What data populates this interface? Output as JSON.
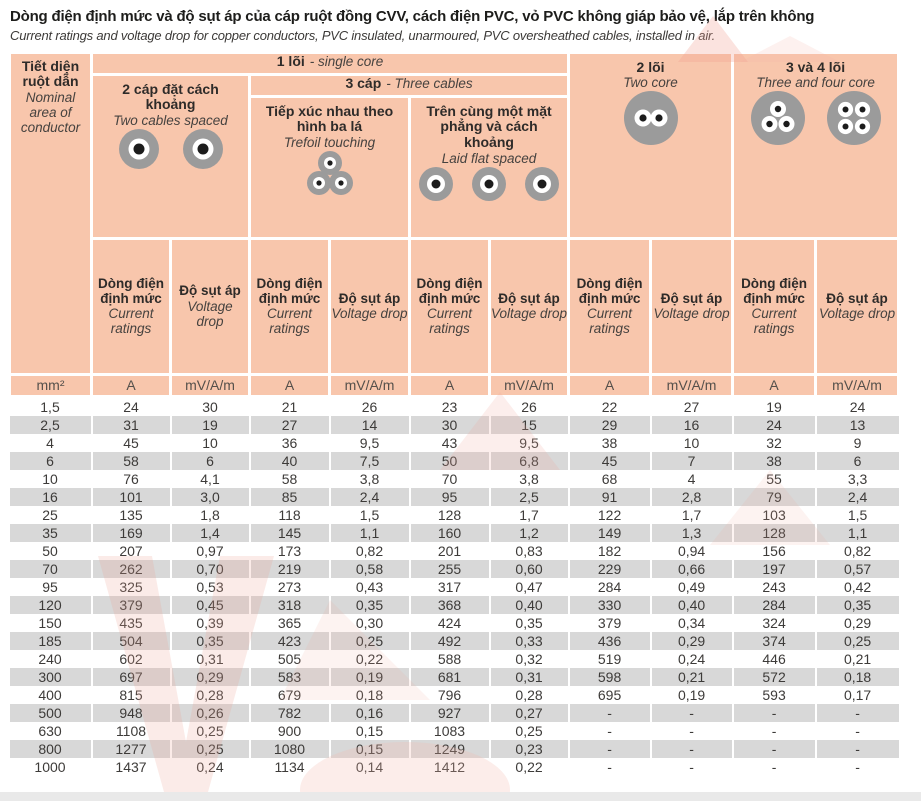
{
  "page": {
    "title": "Dòng điện định mức và độ sụt áp của cáp ruột đồng CVV, cách điện PVC, vỏ PVC không giáp bảo vệ, lắp trên không",
    "subtitle": "Current ratings and voltage drop for copper conductors, PVC insulated, unarmoured, PVC oversheathed cables, installed in air."
  },
  "colors": {
    "header_bg": "#f8c6ac",
    "stripe_gray": "#d8d8d8",
    "cable_gray": "#9b9b9b",
    "watermark_pink": "#f0a79c"
  },
  "table": {
    "corner": {
      "vn": "Tiết diện ruột dẫn",
      "en": "Nominal area of conductor"
    },
    "groups": {
      "single_core": {
        "vn": "1 lõi",
        "sep": " - ",
        "en": "single core"
      },
      "two_cables_spaced": {
        "vn": "2 cáp đặt cách khoảng",
        "en": "Two cables spaced"
      },
      "three_cables": {
        "vn": "3 cáp",
        "sep": " - ",
        "en": "Three cables"
      },
      "trefoil": {
        "vn": "Tiếp xúc nhau theo hình ba lá",
        "en": "Trefoil touching"
      },
      "laid_flat": {
        "vn": "Trên cùng một mặt phẳng và cách khoảng",
        "en": "Laid flat spaced"
      },
      "two_core": {
        "vn": "2 lõi",
        "en": "Two core"
      },
      "three_four_core": {
        "vn": "3 và 4 lõi",
        "en": "Three and four core"
      }
    },
    "measure_headers": {
      "current": {
        "vn": "Dòng điện định mức",
        "en": "Current ratings"
      },
      "voltage": {
        "vn": "Độ sụt áp",
        "en": "Voltage drop"
      }
    },
    "units": [
      "mm²",
      "A",
      "mV/A/m",
      "A",
      "mV/A/m",
      "A",
      "mV/A/m",
      "A",
      "mV/A/m",
      "A",
      "mV/A/m"
    ],
    "rows": [
      [
        "1,5",
        "24",
        "30",
        "21",
        "26",
        "23",
        "26",
        "22",
        "27",
        "19",
        "24"
      ],
      [
        "2,5",
        "31",
        "19",
        "27",
        "14",
        "30",
        "15",
        "29",
        "16",
        "24",
        "13"
      ],
      [
        "4",
        "45",
        "10",
        "36",
        "9,5",
        "43",
        "9,5",
        "38",
        "10",
        "32",
        "9"
      ],
      [
        "6",
        "58",
        "6",
        "40",
        "7,5",
        "50",
        "6,8",
        "45",
        "7",
        "38",
        "6"
      ],
      [
        "10",
        "76",
        "4,1",
        "58",
        "3,8",
        "70",
        "3,8",
        "68",
        "4",
        "55",
        "3,3"
      ],
      [
        "16",
        "101",
        "3,0",
        "85",
        "2,4",
        "95",
        "2,5",
        "91",
        "2,8",
        "79",
        "2,4"
      ],
      [
        "25",
        "135",
        "1,8",
        "118",
        "1,5",
        "128",
        "1,7",
        "122",
        "1,7",
        "103",
        "1,5"
      ],
      [
        "35",
        "169",
        "1,4",
        "145",
        "1,1",
        "160",
        "1,2",
        "149",
        "1,3",
        "128",
        "1,1"
      ],
      [
        "50",
        "207",
        "0,97",
        "173",
        "0,82",
        "201",
        "0,83",
        "182",
        "0,94",
        "156",
        "0,82"
      ],
      [
        "70",
        "262",
        "0,70",
        "219",
        "0,58",
        "255",
        "0,60",
        "229",
        "0,66",
        "197",
        "0,57"
      ],
      [
        "95",
        "325",
        "0,53",
        "273",
        "0,43",
        "317",
        "0,47",
        "284",
        "0,49",
        "243",
        "0,42"
      ],
      [
        "120",
        "379",
        "0,45",
        "318",
        "0,35",
        "368",
        "0,40",
        "330",
        "0,40",
        "284",
        "0,35"
      ],
      [
        "150",
        "435",
        "0,39",
        "365",
        "0,30",
        "424",
        "0,35",
        "379",
        "0,34",
        "324",
        "0,29"
      ],
      [
        "185",
        "504",
        "0,35",
        "423",
        "0,25",
        "492",
        "0,33",
        "436",
        "0,29",
        "374",
        "0,25"
      ],
      [
        "240",
        "602",
        "0,31",
        "505",
        "0,22",
        "588",
        "0,32",
        "519",
        "0,24",
        "446",
        "0,21"
      ],
      [
        "300",
        "697",
        "0,29",
        "583",
        "0,19",
        "681",
        "0,31",
        "598",
        "0,21",
        "572",
        "0,18"
      ],
      [
        "400",
        "815",
        "0,28",
        "679",
        "0,18",
        "796",
        "0,28",
        "695",
        "0,19",
        "593",
        "0,17"
      ],
      [
        "500",
        "948",
        "0,26",
        "782",
        "0,16",
        "927",
        "0,27",
        "-",
        "-",
        "-",
        "-"
      ],
      [
        "630",
        "1108",
        "0,25",
        "900",
        "0,15",
        "1083",
        "0,25",
        "-",
        "-",
        "-",
        "-"
      ],
      [
        "800",
        "1277",
        "0,25",
        "1080",
        "0,15",
        "1249",
        "0,23",
        "-",
        "-",
        "-",
        "-"
      ],
      [
        "1000",
        "1437",
        "0,24",
        "1134",
        "0,14",
        "1412",
        "0,22",
        "-",
        "-",
        "-",
        "-"
      ]
    ]
  },
  "icons": {
    "two_cables_spaced": "two-cables-spaced-icon",
    "trefoil_touching": "trefoil-touching-icon",
    "laid_flat_spaced": "laid-flat-spaced-icon",
    "two_core": "two-core-cable-icon",
    "three_core": "three-core-cable-icon",
    "four_core": "four-core-cable-icon"
  }
}
